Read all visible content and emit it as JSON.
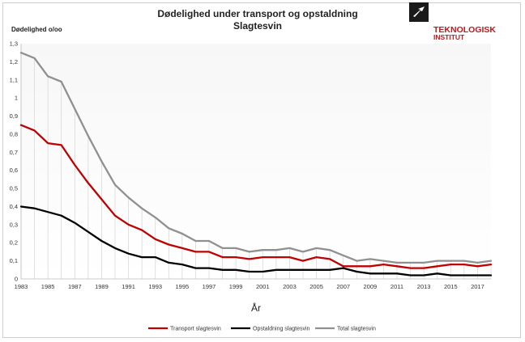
{
  "chart_data": {
    "type": "line",
    "title": "Dødelighed under transport og opstaldning",
    "subtitle": "Slagtesvin",
    "ylabel": "Dødelighed o/oo",
    "xlabel": "År",
    "xlim": [
      1983,
      2018
    ],
    "ylim": [
      0,
      1.3
    ],
    "y_ticks": [
      "0",
      "0,1",
      "0,2",
      "0,3",
      "0,4",
      "0,5",
      "0,6",
      "0,7",
      "0,8",
      "0,9",
      "1",
      "1,1",
      "1,2",
      "1,3"
    ],
    "x_ticks": [
      "1983",
      "1985",
      "1987",
      "1989",
      "1991",
      "1993",
      "1995",
      "1997",
      "1999",
      "2001",
      "2003",
      "2005",
      "2007",
      "2009",
      "2011",
      "2013",
      "2015",
      "2017"
    ],
    "grid": "vertical drop lines from total series",
    "legend_position": "bottom",
    "x": [
      1983,
      1984,
      1985,
      1986,
      1987,
      1988,
      1989,
      1990,
      1991,
      1992,
      1993,
      1994,
      1995,
      1996,
      1997,
      1998,
      1999,
      2000,
      2001,
      2002,
      2003,
      2004,
      2005,
      2006,
      2007,
      2008,
      2009,
      2010,
      2011,
      2012,
      2013,
      2014,
      2015,
      2016,
      2017,
      2018
    ],
    "series": [
      {
        "name": "Transport slagtesvin",
        "color": "#c00000",
        "values": [
          0.85,
          0.82,
          0.75,
          0.74,
          0.63,
          0.53,
          0.44,
          0.35,
          0.3,
          0.27,
          0.22,
          0.19,
          0.17,
          0.15,
          0.15,
          0.12,
          0.12,
          0.11,
          0.12,
          0.12,
          0.12,
          0.1,
          0.12,
          0.11,
          0.07,
          0.07,
          0.07,
          0.08,
          0.07,
          0.06,
          0.06,
          0.07,
          0.08,
          0.08,
          0.07,
          0.08
        ]
      },
      {
        "name": "Opstaldning slagtesvin",
        "color": "#000000",
        "values": [
          0.4,
          0.39,
          0.37,
          0.35,
          0.31,
          0.26,
          0.21,
          0.17,
          0.14,
          0.12,
          0.12,
          0.09,
          0.08,
          0.06,
          0.06,
          0.05,
          0.05,
          0.04,
          0.04,
          0.05,
          0.05,
          0.05,
          0.05,
          0.05,
          0.06,
          0.04,
          0.03,
          0.03,
          0.03,
          0.02,
          0.02,
          0.03,
          0.02,
          0.02,
          0.02,
          0.02
        ]
      },
      {
        "name": "Total slagtesvin",
        "color": "#909090",
        "values": [
          1.25,
          1.22,
          1.12,
          1.09,
          0.94,
          0.79,
          0.65,
          0.52,
          0.45,
          0.39,
          0.34,
          0.28,
          0.25,
          0.21,
          0.21,
          0.17,
          0.17,
          0.15,
          0.16,
          0.16,
          0.17,
          0.15,
          0.17,
          0.16,
          0.13,
          0.1,
          0.11,
          0.1,
          0.09,
          0.09,
          0.09,
          0.1,
          0.1,
          0.1,
          0.09,
          0.1
        ]
      }
    ]
  },
  "logo": {
    "line1": "TEKNOLOGISK",
    "line2": "INSTITUT",
    "color": "#c0181c"
  }
}
